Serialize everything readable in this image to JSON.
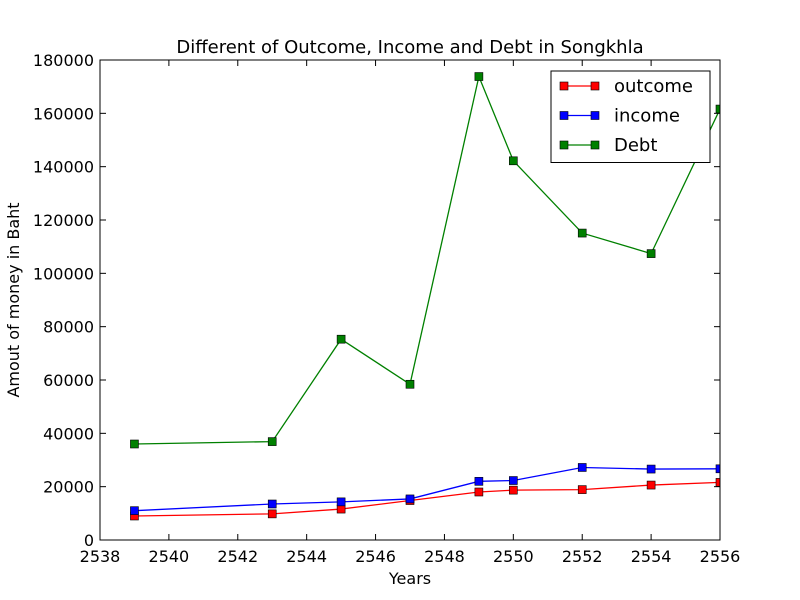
{
  "chart_data": {
    "type": "line",
    "title": "Different of Outcome, Income and Debt in Songkhla",
    "xlabel": "Years",
    "ylabel": "Amout of money in Baht",
    "xlim": [
      2538,
      2556
    ],
    "ylim": [
      0,
      180000
    ],
    "xticks": [
      "2538",
      "2540",
      "2542",
      "2544",
      "2546",
      "2548",
      "2550",
      "2552",
      "2554",
      "2556"
    ],
    "yticks": [
      "0",
      "20000",
      "40000",
      "60000",
      "80000",
      "100000",
      "120000",
      "140000",
      "160000",
      "180000"
    ],
    "x": [
      2539,
      2543,
      2545,
      2547,
      2549,
      2550,
      2552,
      2554,
      2556
    ],
    "series": [
      {
        "name": "outcome",
        "color": "#ff0000",
        "values": [
          9000,
          9800,
          11600,
          14800,
          18000,
          18700,
          18900,
          20600,
          21600
        ]
      },
      {
        "name": "income",
        "color": "#0000ff",
        "values": [
          11000,
          13500,
          14300,
          15400,
          22000,
          22300,
          27200,
          26600,
          26700
        ]
      },
      {
        "name": "Debt",
        "color": "#008000",
        "values": [
          36000,
          36900,
          75300,
          58400,
          173800,
          142200,
          115100,
          107400,
          161600
        ]
      }
    ],
    "legend_position": "top-right",
    "grid": false
  }
}
